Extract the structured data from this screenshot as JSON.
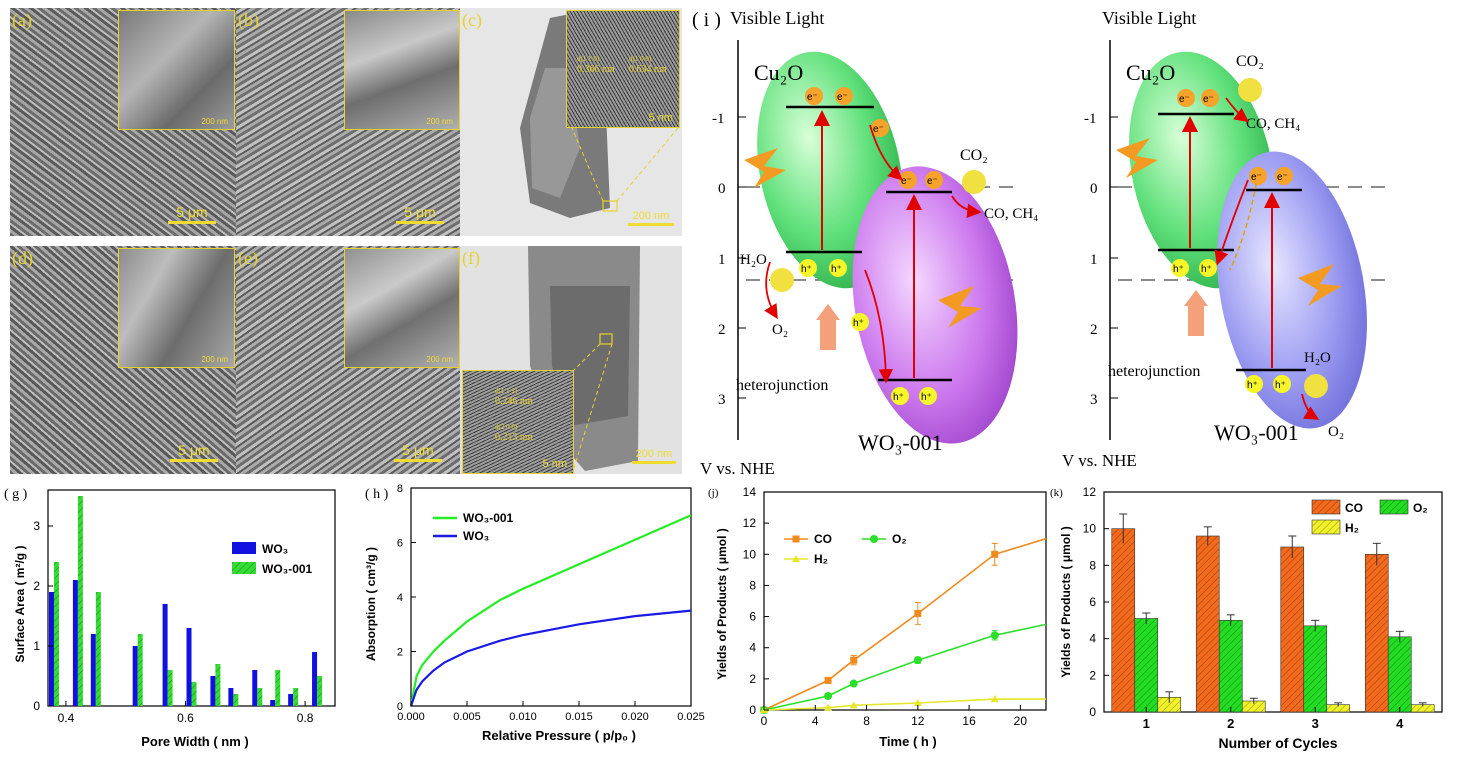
{
  "micrographs": {
    "a": {
      "label": "(a)",
      "scale": "5 μm",
      "inset_scale": "200 nm"
    },
    "b": {
      "label": "(b)",
      "scale": "5 μm",
      "inset_scale": "200 nm"
    },
    "c": {
      "label": "(c)",
      "scale": "200 nm",
      "inset_scale": "5 nm",
      "d1_label": "d(1 1 0)",
      "d1_val": "0.366 nm",
      "d2_label": "d(1 0 0)",
      "d2_val": "0.634 nm"
    },
    "d": {
      "label": "(d)",
      "scale": "5 μm",
      "inset_scale": "200 nm"
    },
    "e": {
      "label": "(e)",
      "scale": "5 μm",
      "inset_scale": "200 nm"
    },
    "f": {
      "label": "(f)",
      "scale": "200 nm",
      "inset_scale": "5 nm",
      "d1_label": "d(1 1 1)",
      "d1_val": "0.246 nm",
      "d2_label": "d(2 0 0)",
      "d2_val": "0.213 nm"
    }
  },
  "scheme": {
    "label": "( i )",
    "left": {
      "title": "Visible Light",
      "cu2o": "Cu₂O",
      "wo3": "WO₃-001",
      "hetero": "heterojunction",
      "axis": "V vs. NHE",
      "co2": "CO₂",
      "products": "CO, CH₄",
      "h2o": "H₂O",
      "o2": "O₂"
    },
    "right": {
      "title": "Visible Light",
      "cu2o": "Cu₂O",
      "wo3": "WO₃-001",
      "hetero": "heterojunction",
      "axis": "V vs. NHE",
      "co2": "CO₂",
      "products": "CO, CH₄",
      "h2o": "H₂O",
      "o2": "O₂"
    },
    "ticks": [
      "-1",
      "0",
      "1",
      "2",
      "3"
    ],
    "electron": "e⁻",
    "hole": "h⁺"
  },
  "chart_data": [
    {
      "id": "g",
      "label": "( g )",
      "type": "bar",
      "xlabel": "Pore Width ( nm )",
      "ylabel": "Surface Area ( m²/g )",
      "xlim": [
        0.37,
        0.85
      ],
      "ylim": [
        0,
        3.6
      ],
      "xticks": [
        "0.4",
        "0.6",
        "0.8"
      ],
      "yticks": [
        "0",
        "1",
        "2",
        "3"
      ],
      "x": [
        0.38,
        0.42,
        0.45,
        0.52,
        0.57,
        0.61,
        0.65,
        0.68,
        0.72,
        0.75,
        0.78,
        0.82
      ],
      "series": [
        {
          "name": "WO₃",
          "color": "#1010e0",
          "values": [
            1.9,
            2.1,
            1.2,
            1.0,
            1.7,
            1.3,
            0.5,
            0.3,
            0.6,
            0.1,
            0.2,
            0.9
          ]
        },
        {
          "name": "WO₃-001",
          "color": "#33dd33",
          "values": [
            2.4,
            3.5,
            1.9,
            1.2,
            0.6,
            0.4,
            0.7,
            0.2,
            0.3,
            0.6,
            0.3,
            0.5
          ]
        }
      ]
    },
    {
      "id": "h",
      "label": "( h )",
      "type": "line",
      "xlabel": "Relative Pressure ( p/p₀ )",
      "ylabel": "Absorption ( cm³/g )",
      "xlim": [
        0,
        0.025
      ],
      "ylim": [
        0,
        8
      ],
      "xticks": [
        "0.000",
        "0.005",
        "0.010",
        "0.015",
        "0.020",
        "0.025"
      ],
      "yticks": [
        "0",
        "2",
        "4",
        "6",
        "8"
      ],
      "series": [
        {
          "name": "WO₃-001",
          "color": "#22ee22",
          "x": [
            0,
            0.0005,
            0.001,
            0.002,
            0.003,
            0.005,
            0.008,
            0.01,
            0.015,
            0.02,
            0.025
          ],
          "values": [
            0,
            1.1,
            1.5,
            2.0,
            2.4,
            3.1,
            3.9,
            4.3,
            5.2,
            6.1,
            7.0
          ]
        },
        {
          "name": "WO₃",
          "color": "#1a1ae6",
          "x": [
            0,
            0.0005,
            0.001,
            0.002,
            0.003,
            0.005,
            0.008,
            0.01,
            0.015,
            0.02,
            0.025
          ],
          "values": [
            0,
            0.6,
            0.9,
            1.3,
            1.6,
            2.0,
            2.4,
            2.6,
            3.0,
            3.3,
            3.5
          ]
        }
      ]
    },
    {
      "id": "j",
      "label": "(j)",
      "type": "line",
      "xlabel": "Time ( h )",
      "ylabel": "Yields of Products ( μmol )",
      "xlim": [
        0,
        22
      ],
      "ylim": [
        0,
        14
      ],
      "xticks": [
        "0",
        "4",
        "8",
        "12",
        "16",
        "20"
      ],
      "yticks": [
        "0",
        "2",
        "4",
        "6",
        "8",
        "10",
        "12",
        "14"
      ],
      "series": [
        {
          "name": "CO",
          "color": "#f08a1e",
          "marker": "square",
          "x": [
            0,
            5,
            7,
            12,
            18,
            22
          ],
          "values": [
            0,
            1.9,
            3.2,
            6.2,
            10.0,
            11.0
          ],
          "err": [
            0,
            0.1,
            0.3,
            0.7,
            0.7,
            0
          ]
        },
        {
          "name": "O₂",
          "color": "#28e028",
          "marker": "circle",
          "x": [
            0,
            5,
            7,
            12,
            18,
            22
          ],
          "values": [
            0,
            0.9,
            1.7,
            3.2,
            4.8,
            5.5
          ],
          "err": [
            0,
            0.1,
            0.1,
            0.2,
            0.3,
            0
          ]
        },
        {
          "name": "H₂",
          "color": "#e6e62a",
          "marker": "triangle",
          "x": [
            0,
            5,
            7,
            12,
            18,
            22
          ],
          "values": [
            0,
            0.15,
            0.3,
            0.45,
            0.7,
            0.7
          ],
          "err": [
            0,
            0,
            0,
            0,
            0,
            0
          ]
        }
      ]
    },
    {
      "id": "k",
      "label": "(k)",
      "type": "bar",
      "xlabel": "Number of Cycles",
      "ylabel": "Yields of Products ( μmol )",
      "ylim": [
        0,
        12
      ],
      "categories": [
        "1",
        "2",
        "3",
        "4"
      ],
      "yticks": [
        "0",
        "2",
        "4",
        "6",
        "8",
        "10",
        "12"
      ],
      "series": [
        {
          "name": "CO",
          "color": "#f36a1c",
          "values": [
            10.0,
            9.6,
            9.0,
            8.6
          ],
          "err": [
            0.8,
            0.5,
            0.6,
            0.6
          ]
        },
        {
          "name": "O₂",
          "color": "#22dd22",
          "values": [
            5.1,
            5.0,
            4.7,
            4.1
          ],
          "err": [
            0.3,
            0.3,
            0.3,
            0.3
          ]
        },
        {
          "name": "H₂",
          "color": "#f2f22a",
          "values": [
            0.8,
            0.6,
            0.4,
            0.4
          ],
          "err": [
            0.3,
            0.15,
            0.1,
            0.1
          ]
        }
      ]
    }
  ]
}
